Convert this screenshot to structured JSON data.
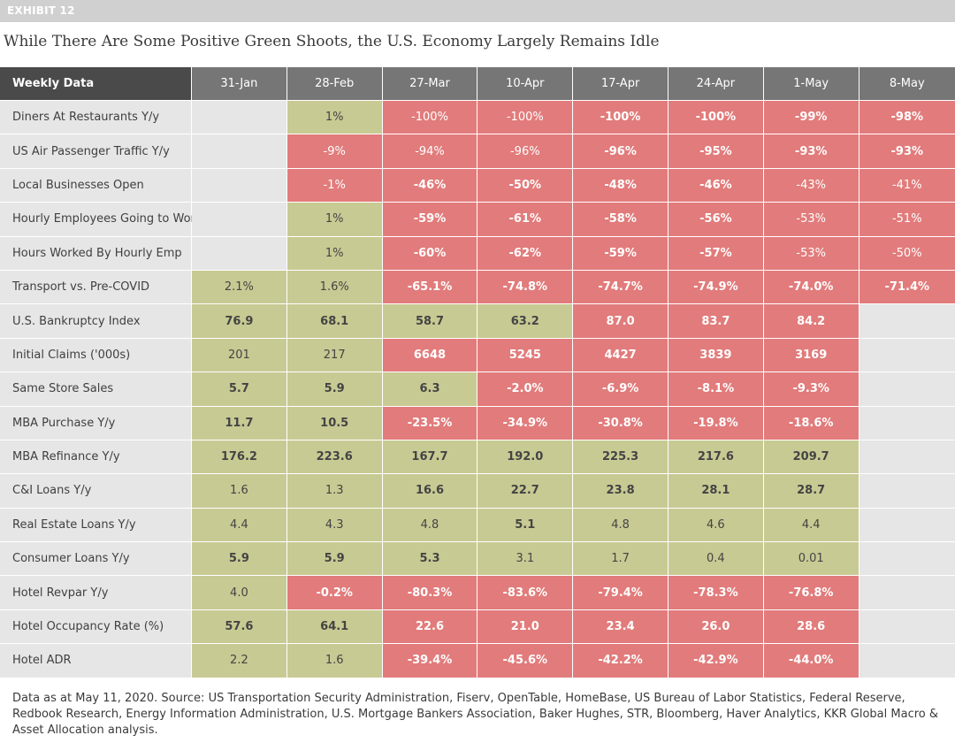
{
  "exhibit": "EXHIBIT 12",
  "title": "While There Are Some Positive Green Shoots, the U.S. Economy Largely Remains Idle",
  "footnote": "Data as at May 11, 2020. Source: US Transportation Security Administration, Fiserv, OpenTable, HomeBase, US Bureau of Labor Statistics, Federal Reserve, Redbook Research, Energy Information Administration, U.S. Mortgage Bankers Association, Baker Hughes, STR, Bloomberg, Haver Analytics, KKR Global Macro & Asset Allocation analysis.",
  "colors": {
    "green": "#c8ca93",
    "red": "#e27b7b",
    "neutral": "#e6e6e6",
    "header": "#767676",
    "header_label": "#4a4a4a"
  },
  "chart_data": {
    "type": "table",
    "header_label": "Weekly Data",
    "columns": [
      "31-Jan",
      "28-Feb",
      "27-Mar",
      "10-Apr",
      "17-Apr",
      "24-Apr",
      "1-May",
      "8-May"
    ],
    "rows": [
      {
        "label": "Diners At Restaurants Y/y",
        "values": [
          "",
          "1%",
          "-100%",
          "-100%",
          "-100%",
          "-100%",
          "-99%",
          "-98%"
        ],
        "colors": [
          "n",
          "g",
          "r",
          "r",
          "r",
          "r",
          "r",
          "r"
        ],
        "bold": [
          0,
          0,
          0,
          0,
          1,
          1,
          1,
          1
        ]
      },
      {
        "label": "US Air Passenger Traffic Y/y",
        "values": [
          "",
          "-9%",
          "-94%",
          "-96%",
          "-96%",
          "-95%",
          "-93%",
          "-93%"
        ],
        "colors": [
          "n",
          "r",
          "r",
          "r",
          "r",
          "r",
          "r",
          "r"
        ],
        "bold": [
          0,
          0,
          0,
          0,
          1,
          1,
          1,
          1
        ]
      },
      {
        "label": "Local Businesses Open",
        "values": [
          "",
          "-1%",
          "-46%",
          "-50%",
          "-48%",
          "-46%",
          "-43%",
          "-41%"
        ],
        "colors": [
          "n",
          "r",
          "r",
          "r",
          "r",
          "r",
          "r",
          "r"
        ],
        "bold": [
          0,
          0,
          1,
          1,
          1,
          1,
          0,
          0
        ]
      },
      {
        "label": "Hourly Employees Going to Work",
        "values": [
          "",
          "1%",
          "-59%",
          "-61%",
          "-58%",
          "-56%",
          "-53%",
          "-51%"
        ],
        "colors": [
          "n",
          "g",
          "r",
          "r",
          "r",
          "r",
          "r",
          "r"
        ],
        "bold": [
          0,
          0,
          1,
          1,
          1,
          1,
          0,
          0
        ]
      },
      {
        "label": "Hours Worked By Hourly Emp",
        "values": [
          "",
          "1%",
          "-60%",
          "-62%",
          "-59%",
          "-57%",
          "-53%",
          "-50%"
        ],
        "colors": [
          "n",
          "g",
          "r",
          "r",
          "r",
          "r",
          "r",
          "r"
        ],
        "bold": [
          0,
          0,
          1,
          1,
          1,
          1,
          0,
          0
        ]
      },
      {
        "label": "Transport vs. Pre-COVID",
        "values": [
          "2.1%",
          "1.6%",
          "-65.1%",
          "-74.8%",
          "-74.7%",
          "-74.9%",
          "-74.0%",
          "-71.4%"
        ],
        "colors": [
          "g",
          "g",
          "r",
          "r",
          "r",
          "r",
          "r",
          "r"
        ],
        "bold": [
          0,
          0,
          1,
          1,
          1,
          1,
          1,
          1
        ]
      },
      {
        "label": "U.S. Bankruptcy Index",
        "values": [
          "76.9",
          "68.1",
          "58.7",
          "63.2",
          "87.0",
          "83.7",
          "84.2",
          ""
        ],
        "colors": [
          "g",
          "g",
          "g",
          "g",
          "r",
          "r",
          "r",
          "n"
        ],
        "bold": [
          1,
          1,
          1,
          1,
          1,
          1,
          1,
          0
        ]
      },
      {
        "label": "Initial Claims ('000s)",
        "values": [
          "201",
          "217",
          "6648",
          "5245",
          "4427",
          "3839",
          "3169",
          ""
        ],
        "colors": [
          "g",
          "g",
          "r",
          "r",
          "r",
          "r",
          "r",
          "n"
        ],
        "bold": [
          0,
          0,
          1,
          1,
          1,
          1,
          1,
          0
        ]
      },
      {
        "label": "Same Store Sales",
        "values": [
          "5.7",
          "5.9",
          "6.3",
          "-2.0%",
          "-6.9%",
          "-8.1%",
          "-9.3%",
          ""
        ],
        "colors": [
          "g",
          "g",
          "g",
          "r",
          "r",
          "r",
          "r",
          "n"
        ],
        "bold": [
          1,
          1,
          1,
          1,
          1,
          1,
          1,
          0
        ]
      },
      {
        "label": "MBA Purchase Y/y",
        "values": [
          "11.7",
          "10.5",
          "-23.5%",
          "-34.9%",
          "-30.8%",
          "-19.8%",
          "-18.6%",
          ""
        ],
        "colors": [
          "g",
          "g",
          "r",
          "r",
          "r",
          "r",
          "r",
          "n"
        ],
        "bold": [
          1,
          1,
          1,
          1,
          1,
          1,
          1,
          0
        ]
      },
      {
        "label": "MBA Refinance Y/y",
        "values": [
          "176.2",
          "223.6",
          "167.7",
          "192.0",
          "225.3",
          "217.6",
          "209.7",
          ""
        ],
        "colors": [
          "g",
          "g",
          "g",
          "g",
          "g",
          "g",
          "g",
          "n"
        ],
        "bold": [
          1,
          1,
          1,
          1,
          1,
          1,
          1,
          0
        ]
      },
      {
        "label": "C&I Loans Y/y",
        "values": [
          "1.6",
          "1.3",
          "16.6",
          "22.7",
          "23.8",
          "28.1",
          "28.7",
          ""
        ],
        "colors": [
          "g",
          "g",
          "g",
          "g",
          "g",
          "g",
          "g",
          "n"
        ],
        "bold": [
          0,
          0,
          1,
          1,
          1,
          1,
          1,
          0
        ]
      },
      {
        "label": "Real Estate Loans Y/y",
        "values": [
          "4.4",
          "4.3",
          "4.8",
          "5.1",
          "4.8",
          "4.6",
          "4.4",
          ""
        ],
        "colors": [
          "g",
          "g",
          "g",
          "g",
          "g",
          "g",
          "g",
          "n"
        ],
        "bold": [
          0,
          0,
          0,
          1,
          0,
          0,
          0,
          0
        ]
      },
      {
        "label": "Consumer Loans Y/y",
        "values": [
          "5.9",
          "5.9",
          "5.3",
          "3.1",
          "1.7",
          "0.4",
          "0.01",
          ""
        ],
        "colors": [
          "g",
          "g",
          "g",
          "g",
          "g",
          "g",
          "g",
          "n"
        ],
        "bold": [
          1,
          1,
          1,
          0,
          0,
          0,
          0,
          0
        ]
      },
      {
        "label": "Hotel Revpar Y/y",
        "values": [
          "4.0",
          "-0.2%",
          "-80.3%",
          "-83.6%",
          "-79.4%",
          "-78.3%",
          "-76.8%",
          ""
        ],
        "colors": [
          "g",
          "r",
          "r",
          "r",
          "r",
          "r",
          "r",
          "n"
        ],
        "bold": [
          0,
          1,
          1,
          1,
          1,
          1,
          1,
          0
        ]
      },
      {
        "label": "Hotel Occupancy Rate (%)",
        "values": [
          "57.6",
          "64.1",
          "22.6",
          "21.0",
          "23.4",
          "26.0",
          "28.6",
          ""
        ],
        "colors": [
          "g",
          "g",
          "r",
          "r",
          "r",
          "r",
          "r",
          "n"
        ],
        "bold": [
          1,
          1,
          1,
          1,
          1,
          1,
          1,
          0
        ]
      },
      {
        "label": "Hotel ADR",
        "values": [
          "2.2",
          "1.6",
          "-39.4%",
          "-45.6%",
          "-42.2%",
          "-42.9%",
          "-44.0%",
          ""
        ],
        "colors": [
          "g",
          "g",
          "r",
          "r",
          "r",
          "r",
          "r",
          "n"
        ],
        "bold": [
          0,
          0,
          1,
          1,
          1,
          1,
          1,
          0
        ]
      }
    ]
  }
}
